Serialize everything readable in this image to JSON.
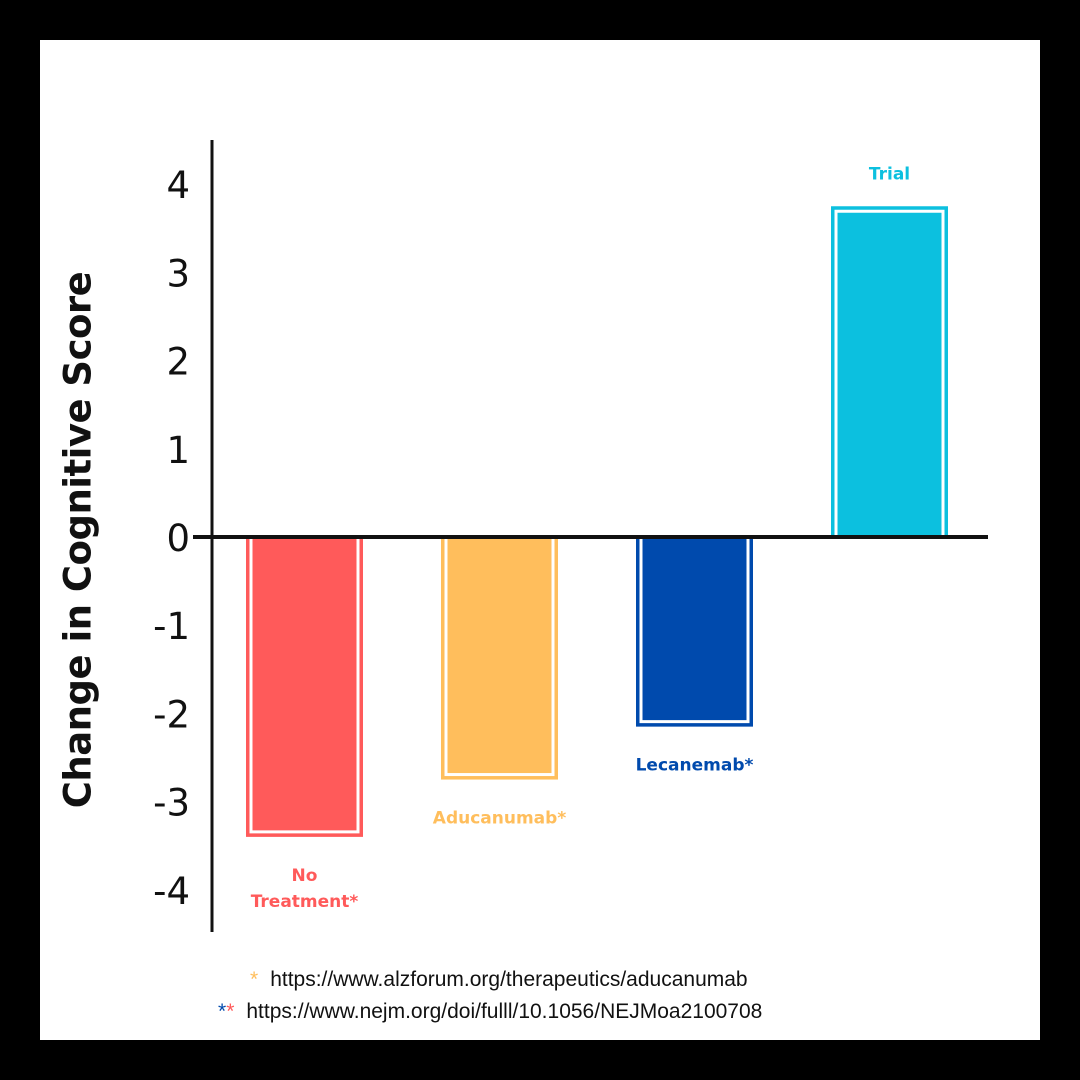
{
  "chart_data": {
    "type": "bar",
    "title": "",
    "xlabel": "",
    "ylabel": "Change in Cognitive Score",
    "ylim": [
      -4.5,
      4.5
    ],
    "yticks": [
      4,
      3,
      2,
      1,
      0,
      -1,
      -2,
      -3,
      -4
    ],
    "yticks_labels": [
      "4",
      "3",
      "2",
      "1",
      "0",
      "-1",
      "-2",
      "-3",
      "-4"
    ],
    "grid": false,
    "legend": "none",
    "categories": [
      "No Treatment*",
      "Aducanumab*",
      "Lecanemab*",
      "Trial"
    ],
    "label_lines": [
      [
        "No",
        "Treatment*"
      ],
      [
        "Aducanumab*"
      ],
      [
        "Lecanemab*"
      ],
      [
        "Trial"
      ]
    ],
    "values": [
      -3.4,
      -2.75,
      -2.15,
      3.75
    ],
    "colors": [
      "#ff5a5a",
      "#ffbe5c",
      "#004aad",
      "#0cc0df"
    ]
  },
  "footnotes": [
    {
      "marker": "*",
      "marker_colors": [
        "#ffbe5c"
      ],
      "text": "https://www.alzforum.org/therapeutics/aducanumab"
    },
    {
      "marker": "**",
      "marker_colors": [
        "#004aad",
        "#ff5a5a"
      ],
      "text": "https://www.nejm.org/doi/fulll/10.1056/NEJMoa2100708"
    }
  ]
}
